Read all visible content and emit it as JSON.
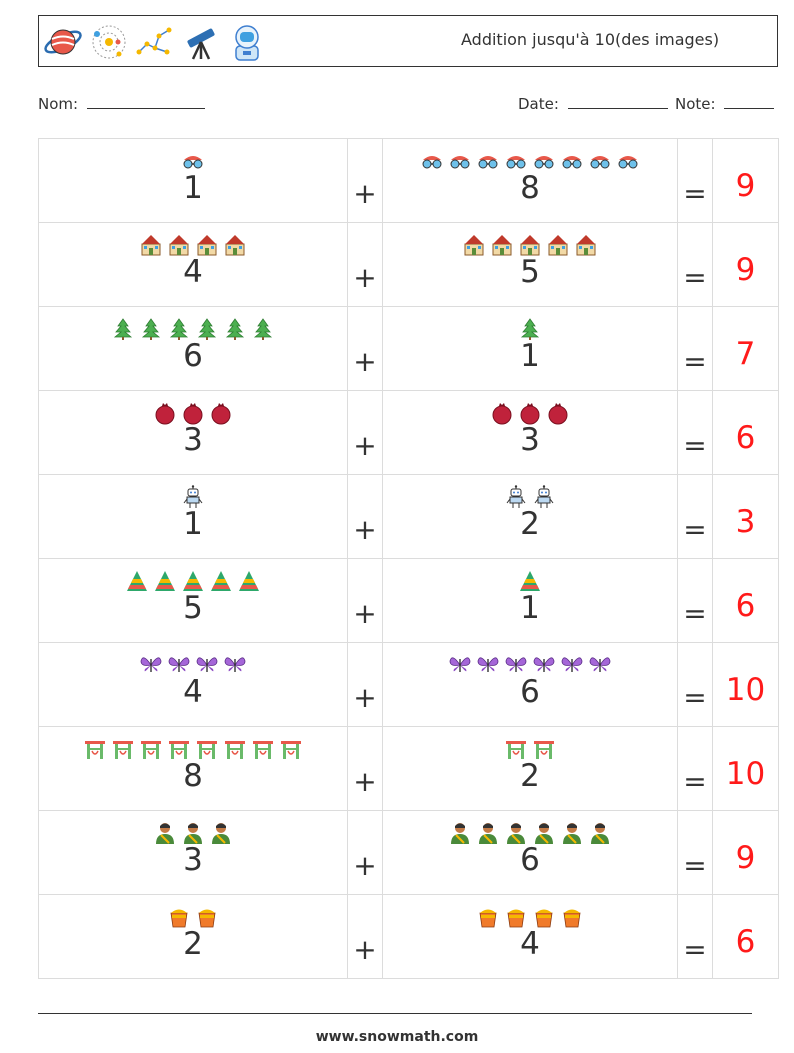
{
  "header": {
    "title": "Addition jusqu'à 10(des images)",
    "icons": [
      "planet-icon",
      "solar-system-icon",
      "constellation-icon",
      "telescope-icon",
      "astronaut-icon"
    ]
  },
  "meta": {
    "name_label": "Nom:",
    "date_label": "Date:",
    "note_label": "Note:"
  },
  "problems": [
    {
      "a": "1",
      "a_icon": "glasses-icon",
      "b": "8",
      "b_icon": "glasses-icon",
      "plus": "+",
      "eq": "=",
      "answer": "9"
    },
    {
      "a": "4",
      "a_icon": "building-icon",
      "b": "5",
      "b_icon": "building-icon",
      "plus": "+",
      "eq": "=",
      "answer": "9"
    },
    {
      "a": "6",
      "a_icon": "tree-icon",
      "b": "1",
      "b_icon": "tree-icon",
      "plus": "+",
      "eq": "=",
      "answer": "7"
    },
    {
      "a": "3",
      "a_icon": "pomegranate-icon",
      "b": "3",
      "b_icon": "pomegranate-icon",
      "plus": "+",
      "eq": "=",
      "answer": "6"
    },
    {
      "a": "1",
      "a_icon": "robot-icon",
      "b": "2",
      "b_icon": "robot-icon",
      "plus": "+",
      "eq": "=",
      "answer": "3"
    },
    {
      "a": "5",
      "a_icon": "pyramid-icon",
      "b": "1",
      "b_icon": "pyramid-icon",
      "plus": "+",
      "eq": "=",
      "answer": "6"
    },
    {
      "a": "4",
      "a_icon": "butterfly-icon",
      "b": "6",
      "b_icon": "butterfly-icon",
      "plus": "+",
      "eq": "=",
      "answer": "10"
    },
    {
      "a": "8",
      "a_icon": "gate-icon",
      "b": "2",
      "b_icon": "gate-icon",
      "plus": "+",
      "eq": "=",
      "answer": "10"
    },
    {
      "a": "3",
      "a_icon": "person-icon",
      "b": "6",
      "b_icon": "person-icon",
      "plus": "+",
      "eq": "=",
      "answer": "9"
    },
    {
      "a": "2",
      "a_icon": "bucket-icon",
      "b": "4",
      "b_icon": "bucket-icon",
      "plus": "+",
      "eq": "=",
      "answer": "6"
    }
  ],
  "footer": {
    "url": "www.snowmath.com"
  }
}
